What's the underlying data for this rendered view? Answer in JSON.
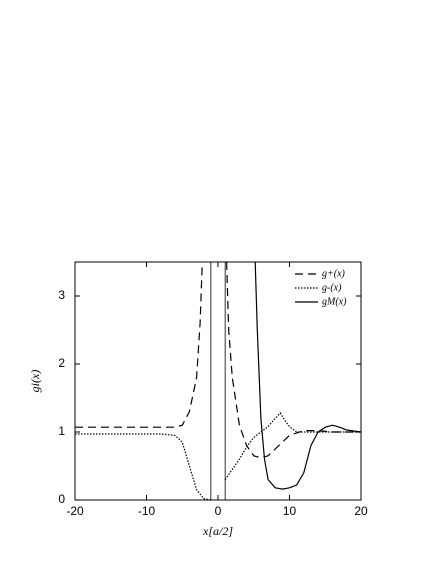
{
  "chart_data": {
    "type": "line",
    "xlabel": "x[a/2]",
    "ylabel": "gi(x)",
    "xlim": [
      -20,
      20
    ],
    "ylim": [
      0,
      3.5
    ],
    "xticks": [
      -20,
      -10,
      0,
      10,
      20
    ],
    "yticks": [
      0,
      1,
      2,
      3
    ],
    "vlines": [
      -1,
      1
    ],
    "legend": "upper right",
    "series": [
      {
        "name": "g+(x)",
        "color": "#000",
        "dash": "8,5",
        "x": [
          -20,
          -10,
          -6,
          -5,
          -4,
          -3,
          -2.5,
          -2.2,
          null,
          1.2,
          1.5,
          2,
          3,
          4,
          5,
          6,
          7,
          8,
          10,
          12,
          14,
          16,
          20
        ],
        "values": [
          1.07,
          1.07,
          1.07,
          1.1,
          1.3,
          1.8,
          2.6,
          3.5,
          null,
          3.5,
          2.5,
          1.8,
          1.1,
          0.8,
          0.65,
          0.62,
          0.65,
          0.75,
          0.95,
          1.02,
          1.02,
          1.0,
          1.0
        ]
      },
      {
        "name": "g-(x)",
        "color": "#000",
        "dash": "1.5,1.5",
        "x": [
          -20,
          -8,
          -6,
          -5,
          -4,
          -3,
          -2,
          -1,
          null,
          1,
          2,
          3,
          4,
          5,
          6,
          7,
          8,
          8.7,
          9.5,
          10,
          11,
          12,
          20
        ],
        "values": [
          0.97,
          0.97,
          0.95,
          0.85,
          0.5,
          0.15,
          0.02,
          0,
          null,
          0.3,
          0.45,
          0.6,
          0.78,
          0.92,
          1.0,
          1.08,
          1.2,
          1.28,
          1.15,
          1.08,
          1.0,
          1.0,
          1.0
        ]
      },
      {
        "name": "gM(x)",
        "color": "#000",
        "dash": "none",
        "x": [
          5.2,
          5.5,
          6,
          6.5,
          7,
          8,
          9,
          10,
          11,
          12,
          13,
          14,
          15,
          16,
          17,
          18,
          20
        ],
        "values": [
          3.5,
          2.5,
          1.2,
          0.6,
          0.3,
          0.18,
          0.16,
          0.18,
          0.22,
          0.4,
          0.8,
          1.0,
          1.07,
          1.1,
          1.07,
          1.03,
          1.0
        ]
      }
    ]
  }
}
